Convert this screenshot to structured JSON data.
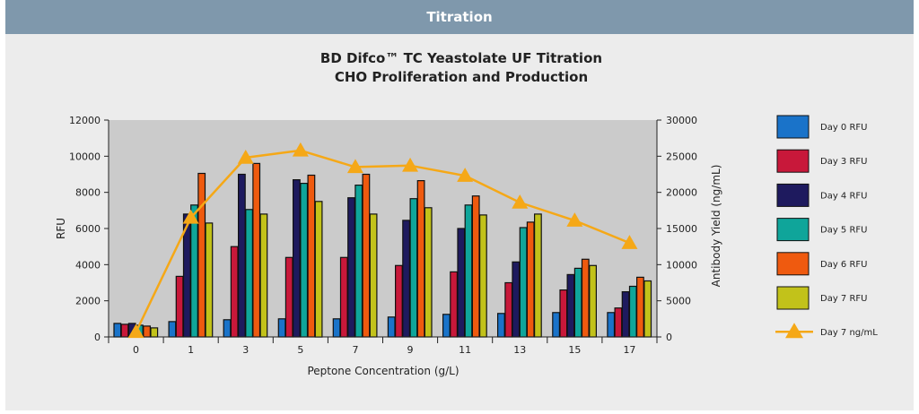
{
  "header": {
    "title": "Titration"
  },
  "chart_data": {
    "type": "bar",
    "title": "BD Difco™ TC Yeastolate UF Titration",
    "subtitle": "CHO Proliferation and Production",
    "xlabel": "Peptone Concentration (g/L)",
    "ylabel": "RFU",
    "y2label": "Antibody Yield (ng/mL)",
    "ylim": [
      0,
      12000
    ],
    "y2lim": [
      0,
      30000
    ],
    "yticks": [
      "0",
      "2000",
      "4000",
      "6000",
      "8000",
      "10000",
      "12000"
    ],
    "y2ticks": [
      "0",
      "5000",
      "10000",
      "15000",
      "20000",
      "25000",
      "30000"
    ],
    "categories": [
      "0",
      "1",
      "3",
      "5",
      "7",
      "9",
      "11",
      "13",
      "15",
      "17"
    ],
    "legend_position": "right",
    "series": [
      {
        "name": "Day 0 RFU",
        "color": "#1a73c9",
        "values": [
          750,
          850,
          950,
          1000,
          1000,
          1100,
          1250,
          1300,
          1350,
          1350
        ]
      },
      {
        "name": "Day 3 RFU",
        "color": "#c8183a",
        "values": [
          700,
          3350,
          5000,
          4400,
          4400,
          3950,
          3600,
          3000,
          2600,
          1600
        ]
      },
      {
        "name": "Day 4 RFU",
        "color": "#1e1a5e",
        "values": [
          750,
          6800,
          9000,
          8700,
          7700,
          6450,
          6000,
          4150,
          3450,
          2500
        ]
      },
      {
        "name": "Day 5 RFU",
        "color": "#0fa59a",
        "values": [
          650,
          7300,
          7050,
          8500,
          8400,
          7650,
          7300,
          6050,
          3800,
          2800
        ]
      },
      {
        "name": "Day 6 RFU",
        "color": "#ef5a0f",
        "values": [
          600,
          9050,
          9600,
          8950,
          9000,
          8650,
          7800,
          6350,
          4300,
          3300
        ]
      },
      {
        "name": "Day 7 RFU",
        "color": "#c2c21a",
        "values": [
          500,
          6300,
          6800,
          7500,
          6800,
          7150,
          6750,
          6800,
          3950,
          3100
        ]
      }
    ],
    "line_series": {
      "name": "Day 7 ng/mL",
      "color": "#f5a817",
      "axis": "right",
      "values": [
        700,
        16500,
        24800,
        25800,
        23500,
        23700,
        22300,
        18600,
        16100,
        13000
      ]
    }
  }
}
